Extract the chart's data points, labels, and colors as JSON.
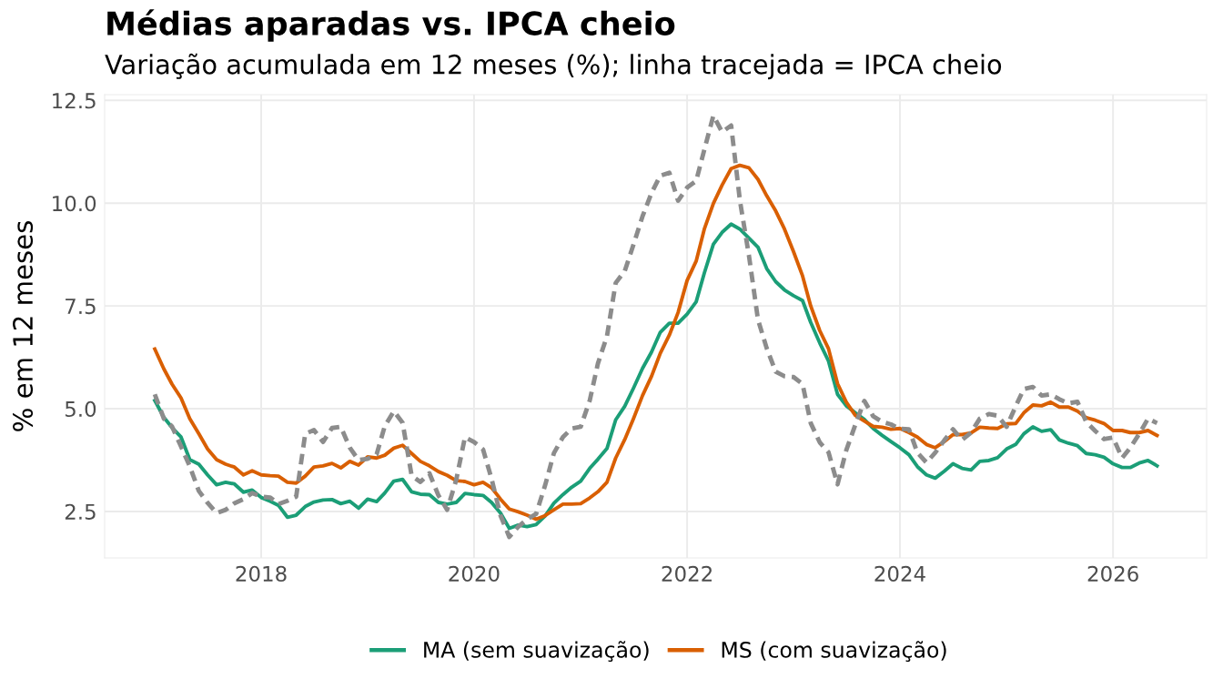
{
  "chart_data": {
    "type": "line",
    "title": "Médias aparadas vs. IPCA cheio",
    "subtitle": "Variação acumulada em 12 meses (%); linha tracejada = IPCA cheio",
    "ylabel": "% em 12 meses",
    "x": [
      "2017-01",
      "2017-02",
      "2017-03",
      "2017-04",
      "2017-05",
      "2017-06",
      "2017-07",
      "2017-08",
      "2017-09",
      "2017-10",
      "2017-11",
      "2017-12",
      "2018-01",
      "2018-02",
      "2018-03",
      "2018-04",
      "2018-05",
      "2018-06",
      "2018-07",
      "2018-08",
      "2018-09",
      "2018-10",
      "2018-11",
      "2018-12",
      "2019-01",
      "2019-02",
      "2019-03",
      "2019-04",
      "2019-05",
      "2019-06",
      "2019-07",
      "2019-08",
      "2019-09",
      "2019-10",
      "2019-11",
      "2019-12",
      "2020-01",
      "2020-02",
      "2020-03",
      "2020-04",
      "2020-05",
      "2020-06",
      "2020-07",
      "2020-08",
      "2020-09",
      "2020-10",
      "2020-11",
      "2020-12",
      "2021-01",
      "2021-02",
      "2021-03",
      "2021-04",
      "2021-05",
      "2021-06",
      "2021-07",
      "2021-08",
      "2021-09",
      "2021-10",
      "2021-11",
      "2021-12",
      "2022-01",
      "2022-02",
      "2022-03",
      "2022-04",
      "2022-05",
      "2022-06",
      "2022-07",
      "2022-08",
      "2022-09",
      "2022-10",
      "2022-11",
      "2022-12",
      "2023-01",
      "2023-02",
      "2023-03",
      "2023-04",
      "2023-05",
      "2023-06",
      "2023-07",
      "2023-08",
      "2023-09",
      "2023-10",
      "2023-11",
      "2023-12",
      "2024-01",
      "2024-02",
      "2024-03",
      "2024-04",
      "2024-05",
      "2024-06",
      "2024-07",
      "2024-08",
      "2024-09",
      "2024-10",
      "2024-11",
      "2024-12",
      "2025-01",
      "2025-02",
      "2025-03",
      "2025-04",
      "2025-05",
      "2025-06",
      "2025-07",
      "2025-08",
      "2025-09",
      "2025-10",
      "2025-11",
      "2025-12",
      "2026-01",
      "2026-02",
      "2026-03",
      "2026-04",
      "2026-05",
      "2026-06"
    ],
    "series": [
      {
        "name": "MA (sem suavização)",
        "color": "#1b9e77",
        "line_style": "solid",
        "values": [
          5.2,
          4.79,
          4.54,
          4.31,
          3.76,
          3.65,
          3.39,
          3.15,
          3.21,
          3.17,
          2.97,
          3.02,
          2.84,
          2.75,
          2.65,
          2.36,
          2.41,
          2.62,
          2.73,
          2.78,
          2.79,
          2.69,
          2.75,
          2.58,
          2.8,
          2.74,
          2.95,
          3.24,
          3.28,
          2.98,
          2.92,
          2.91,
          2.72,
          2.68,
          2.72,
          2.94,
          2.91,
          2.89,
          2.72,
          2.46,
          2.09,
          2.17,
          2.13,
          2.18,
          2.39,
          2.7,
          2.91,
          3.09,
          3.24,
          3.55,
          3.77,
          4.03,
          4.73,
          5.06,
          5.5,
          5.98,
          6.38,
          6.86,
          7.08,
          7.08,
          7.3,
          7.6,
          8.3,
          9.0,
          9.29,
          9.49,
          9.37,
          9.15,
          8.93,
          8.41,
          8.09,
          7.89,
          7.75,
          7.63,
          7.1,
          6.6,
          6.16,
          5.35,
          5.07,
          4.9,
          4.74,
          4.52,
          4.35,
          4.2,
          4.05,
          3.88,
          3.59,
          3.39,
          3.31,
          3.48,
          3.66,
          3.55,
          3.51,
          3.72,
          3.74,
          3.81,
          4.02,
          4.13,
          4.39,
          4.56,
          4.45,
          4.49,
          4.24,
          4.16,
          4.1,
          3.91,
          3.88,
          3.82,
          3.66,
          3.57,
          3.57,
          3.68,
          3.74,
          3.61
        ]
      },
      {
        "name": "MS (com suavização)",
        "color": "#d95f02",
        "line_style": "solid",
        "values": [
          6.45,
          5.97,
          5.6,
          5.26,
          4.76,
          4.39,
          4.02,
          3.76,
          3.65,
          3.58,
          3.39,
          3.49,
          3.39,
          3.37,
          3.36,
          3.21,
          3.19,
          3.36,
          3.58,
          3.61,
          3.67,
          3.56,
          3.72,
          3.63,
          3.83,
          3.8,
          3.87,
          4.04,
          4.11,
          3.91,
          3.72,
          3.61,
          3.47,
          3.38,
          3.25,
          3.23,
          3.15,
          3.21,
          3.08,
          2.8,
          2.56,
          2.49,
          2.41,
          2.31,
          2.4,
          2.54,
          2.68,
          2.68,
          2.69,
          2.83,
          2.98,
          3.21,
          3.8,
          4.25,
          4.76,
          5.32,
          5.79,
          6.35,
          6.79,
          7.34,
          8.12,
          8.59,
          9.37,
          9.99,
          10.44,
          10.84,
          10.92,
          10.86,
          10.58,
          10.18,
          9.81,
          9.37,
          8.82,
          8.23,
          7.5,
          6.9,
          6.46,
          5.61,
          5.16,
          4.84,
          4.7,
          4.57,
          4.55,
          4.5,
          4.52,
          4.42,
          4.31,
          4.13,
          4.05,
          4.2,
          4.37,
          4.37,
          4.41,
          4.55,
          4.53,
          4.52,
          4.63,
          4.64,
          4.9,
          5.09,
          5.07,
          5.16,
          5.04,
          5.04,
          4.94,
          4.78,
          4.72,
          4.64,
          4.47,
          4.47,
          4.42,
          4.42,
          4.47,
          4.35
        ]
      },
      {
        "color": "#8c8c8c",
        "line_style": "dashed",
        "values": [
          5.35,
          4.76,
          4.57,
          4.08,
          3.6,
          3.0,
          2.71,
          2.46,
          2.54,
          2.7,
          2.8,
          2.95,
          2.86,
          2.84,
          2.68,
          2.76,
          2.86,
          4.39,
          4.48,
          4.19,
          4.53,
          4.56,
          4.05,
          3.75,
          3.78,
          3.89,
          4.58,
          4.94,
          4.66,
          3.37,
          3.22,
          3.43,
          2.89,
          2.54,
          3.27,
          4.31,
          4.19,
          4.01,
          3.3,
          2.4,
          1.88,
          2.13,
          2.31,
          2.44,
          3.14,
          3.92,
          4.31,
          4.52,
          4.56,
          5.2,
          6.1,
          6.76,
          8.06,
          8.35,
          8.99,
          9.68,
          10.25,
          10.67,
          10.74,
          10.06,
          10.38,
          10.54,
          11.3,
          12.13,
          11.73,
          11.89,
          10.07,
          8.73,
          7.17,
          6.47,
          5.9,
          5.79,
          5.77,
          5.6,
          4.65,
          4.18,
          3.94,
          3.16,
          3.99,
          4.61,
          5.19,
          4.82,
          4.68,
          4.62,
          4.51,
          4.5,
          3.93,
          3.69,
          3.93,
          4.23,
          4.5,
          4.24,
          4.42,
          4.76,
          4.87,
          4.83,
          4.56,
          5.06,
          5.48,
          5.53,
          5.32,
          5.35,
          5.23,
          5.13,
          5.17,
          4.68,
          4.46,
          4.26,
          4.3,
          3.8,
          4.05,
          4.39,
          4.76,
          4.65
        ]
      }
    ],
    "xlim": [
      "2016-07-13",
      "2026-11-18"
    ],
    "xticks": [
      "2018",
      "2020",
      "2022",
      "2024",
      "2026"
    ],
    "ylim": [
      1.37,
      12.64
    ],
    "yticks": [
      2.5,
      {
        "value": 5,
        "label": "5.0"
      },
      7.5,
      {
        "value": 10,
        "label": "10.0"
      },
      12.5
    ],
    "grid": true,
    "legend": "bottom"
  }
}
